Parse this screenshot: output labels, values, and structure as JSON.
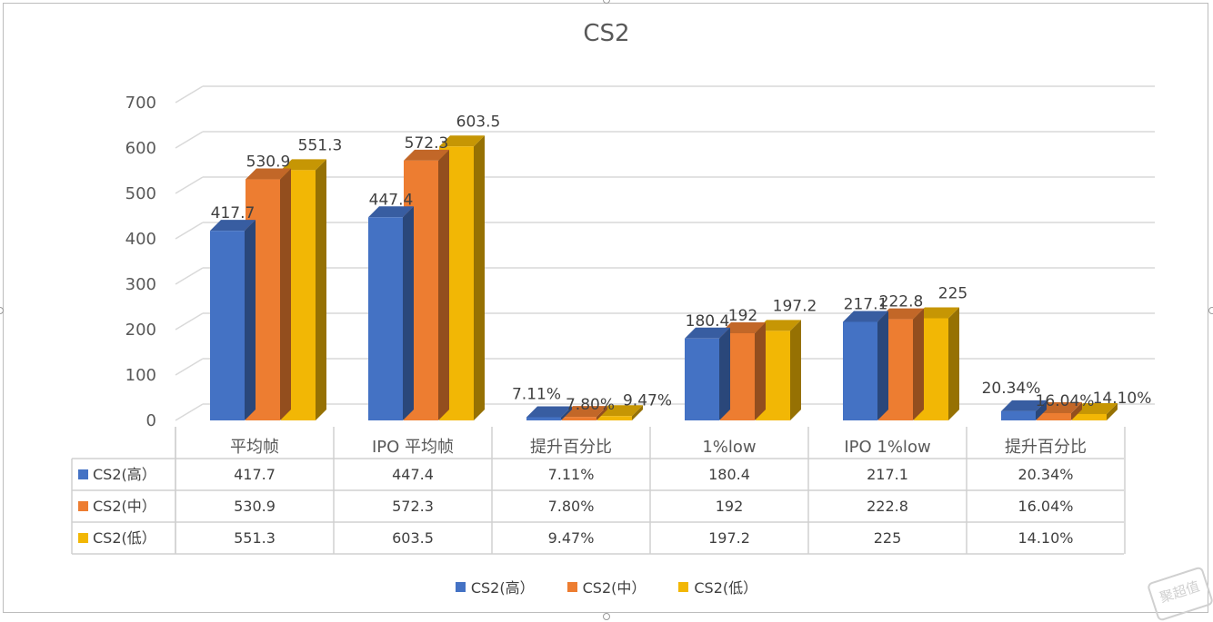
{
  "chart_data": {
    "type": "bar",
    "title": "CS2",
    "categories": [
      "平均帧",
      "IPO 平均帧",
      "提升百分比",
      "1%low",
      "IPO 1%low",
      "提升百分比"
    ],
    "ylim": [
      0,
      700
    ],
    "yticks": [
      "0",
      "100",
      "200",
      "300",
      "400",
      "500",
      "600",
      "700"
    ],
    "grid": true,
    "legend_position": "bottom",
    "data_table": true,
    "series": [
      {
        "name": "CS2(高）",
        "color": "#4472C4",
        "values": [
          417.7,
          447.4,
          7.11,
          180.4,
          217.1,
          20.34
        ],
        "labels": [
          "417.7",
          "447.4",
          "7.11%",
          "180.4",
          "217.1",
          "20.34%"
        ]
      },
      {
        "name": "CS2(中）",
        "color": "#ED7D31",
        "values": [
          530.9,
          572.3,
          7.8,
          192,
          222.8,
          16.04
        ],
        "labels": [
          "530.9",
          "572.3",
          "7.80%",
          "192",
          "222.8",
          "16.04%"
        ]
      },
      {
        "name": "CS2(低）",
        "color": "#F2B705",
        "values": [
          551.3,
          603.5,
          9.47,
          197.2,
          225,
          14.1
        ],
        "labels": [
          "551.3",
          "603.5",
          "9.47%",
          "197.2",
          "225",
          "14.10%"
        ]
      }
    ]
  },
  "watermark": {
    "text": "聚超值"
  }
}
